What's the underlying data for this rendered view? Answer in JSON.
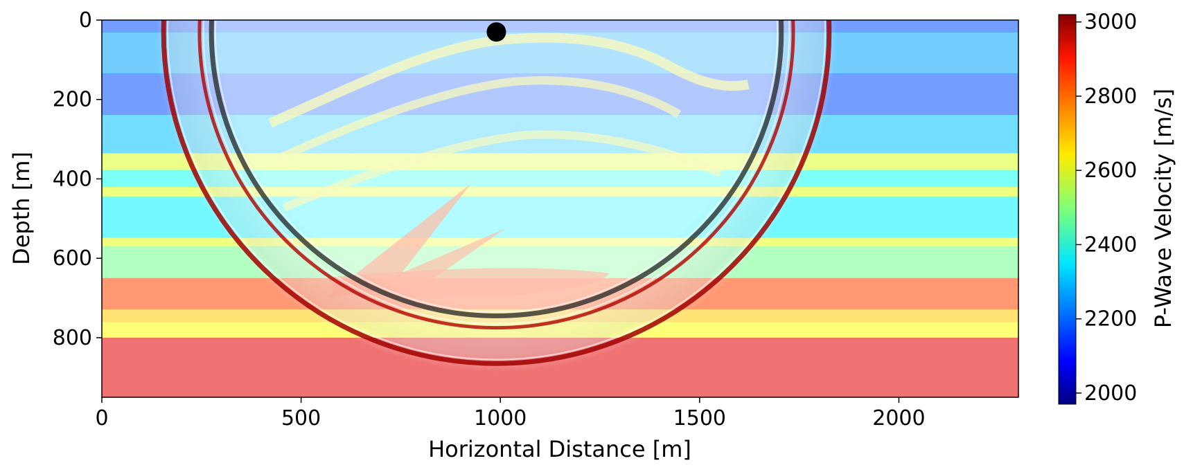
{
  "chart_data": {
    "type": "heatmap",
    "title": "",
    "xlabel": "Horizontal Distance [m]",
    "ylabel": "Depth [m]",
    "xlim": [
      0,
      2300
    ],
    "ylim": [
      950,
      0
    ],
    "x_ticks": [
      0,
      500,
      1000,
      1500,
      2000
    ],
    "y_ticks": [
      0,
      200,
      400,
      600,
      800
    ],
    "x_tick_labels": [
      "0",
      "500",
      "1000",
      "1500",
      "2000"
    ],
    "y_tick_labels": [
      "0",
      "200",
      "400",
      "600",
      "800"
    ],
    "colorbar": {
      "label": "P-Wave Velocity [m/s]",
      "colormap": "jet",
      "range": [
        1970,
        3020
      ],
      "ticks": [
        2000,
        2200,
        2400,
        2600,
        2800,
        3000
      ],
      "tick_labels": [
        "2000",
        "2200",
        "2400",
        "2600",
        "2800",
        "3000"
      ]
    },
    "layers": [
      {
        "top": 0,
        "bottom": 30,
        "velocity": 2180
      },
      {
        "top": 30,
        "bottom": 135,
        "velocity": 2270
      },
      {
        "top": 135,
        "bottom": 238,
        "velocity": 2180
      },
      {
        "top": 238,
        "bottom": 335,
        "velocity": 2300
      },
      {
        "top": 335,
        "bottom": 378,
        "velocity": 2590
      },
      {
        "top": 378,
        "bottom": 420,
        "velocity": 2380
      },
      {
        "top": 420,
        "bottom": 445,
        "velocity": 2600
      },
      {
        "top": 445,
        "bottom": 548,
        "velocity": 2350
      },
      {
        "top": 548,
        "bottom": 570,
        "velocity": 2600
      },
      {
        "top": 570,
        "bottom": 650,
        "velocity": 2480
      },
      {
        "top": 650,
        "bottom": 728,
        "velocity": 2820
      },
      {
        "top": 728,
        "bottom": 760,
        "velocity": 2680
      },
      {
        "top": 760,
        "bottom": 800,
        "velocity": 2620
      },
      {
        "top": 800,
        "bottom": 950,
        "velocity": 2920
      }
    ],
    "source": {
      "x": 990,
      "depth": 30
    },
    "wavefront": {
      "center_x": 990,
      "center_depth": 30,
      "radii": [
        715,
        745,
        835
      ]
    }
  }
}
